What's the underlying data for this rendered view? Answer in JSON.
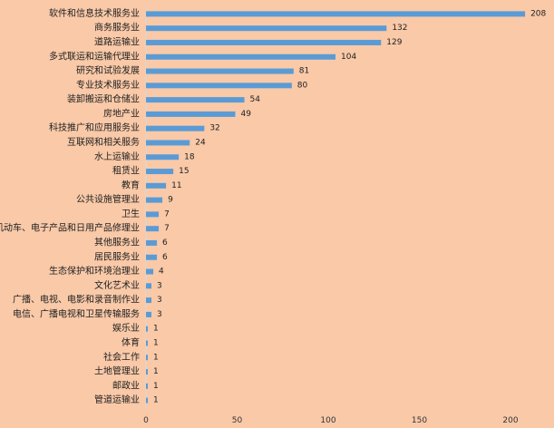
{
  "chart_data": {
    "type": "bar",
    "orientation": "horizontal",
    "categories": [
      "软件和信息技术服务业",
      "商务服务业",
      "道路运输业",
      "多式联运和运输代理业",
      "研究和试验发展",
      "专业技术服务业",
      "装卸搬运和仓储业",
      "房地产业",
      "科技推广和应用服务业",
      "互联网和相关服务",
      "水上运输业",
      "租赁业",
      "教育",
      "公共设施管理业",
      "卫生",
      "机动车、电子产品和日用产品修理业",
      "其他服务业",
      "居民服务业",
      "生态保护和环境治理业",
      "文化艺术业",
      "广播、电视、电影和录音制作业",
      "电信、广播电视和卫星传输服务",
      "娱乐业",
      "体育",
      "社会工作",
      "土地管理业",
      "邮政业",
      "管道运输业"
    ],
    "values": [
      208,
      132,
      129,
      104,
      81,
      80,
      54,
      49,
      32,
      24,
      18,
      15,
      11,
      9,
      7,
      7,
      6,
      6,
      4,
      3,
      3,
      3,
      1,
      1,
      1,
      1,
      1,
      1
    ],
    "xlim": [
      0,
      208
    ],
    "xticks": [
      0,
      50,
      100,
      150,
      200
    ],
    "xtick_labels": [
      "0",
      "50",
      "100",
      "150",
      "200"
    ],
    "title": "",
    "xlabel": "",
    "ylabel": "",
    "grid": false,
    "legend": "none",
    "bar_color": "#5b9bd5",
    "background_color": "#f9c9a8"
  }
}
